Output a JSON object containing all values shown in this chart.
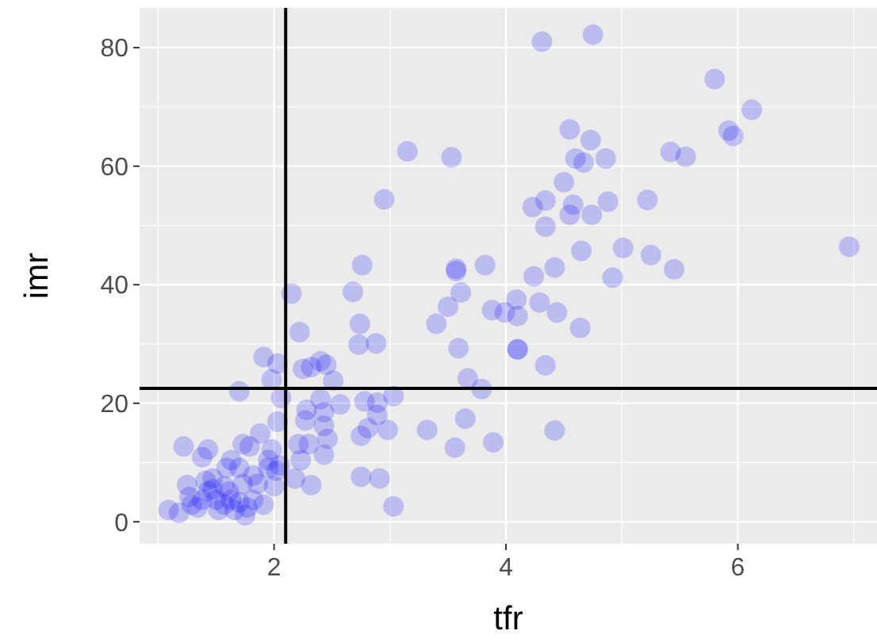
{
  "chart_data": {
    "type": "scatter",
    "xlabel": "tfr",
    "ylabel": "imr",
    "xlim": [
      0.84,
      7.2
    ],
    "ylim": [
      -3.7,
      86.7
    ],
    "xticks": [
      2,
      4,
      6
    ],
    "yticks": [
      0,
      20,
      40,
      60,
      80
    ],
    "grid": true,
    "marker": "circle",
    "ref_lines": [
      {
        "axis": "x",
        "value": 2.1,
        "color": "#000000"
      },
      {
        "axis": "y",
        "value": 22.5,
        "color": "#000000"
      }
    ],
    "series": [
      {
        "color": "#0000ff",
        "x": [
          4.31,
          4.75,
          5.8,
          6.12,
          5.92,
          5.96,
          4.55,
          4.73,
          4.6,
          4.67,
          4.86,
          5.42,
          5.55,
          3.53,
          3.15,
          4.5,
          4.23,
          4.34,
          4.58,
          4.55,
          4.74,
          4.88,
          5.22,
          4.34,
          4.65,
          5.01,
          5.25,
          5.45,
          4.92,
          6.96,
          4.42,
          4.24,
          3.82,
          3.57,
          3.57,
          3.61,
          3.5,
          3.4,
          3.88,
          3.99,
          4.09,
          4.1,
          4.29,
          4.44,
          4.64,
          3.59,
          4.1,
          4.1,
          4.34,
          3.67,
          3.79,
          3.65,
          3.32,
          3.56,
          3.89,
          4.42,
          2.95,
          2.76,
          2.68,
          2.15,
          2.74,
          2.22,
          2.73,
          2.88,
          1.91,
          2.03,
          2.25,
          2.32,
          2.4,
          2.45,
          1.98,
          2.51,
          1.7,
          2.06,
          2.4,
          2.57,
          2.28,
          2.43,
          2.78,
          2.89,
          3.03,
          2.89,
          2.98,
          2.81,
          2.75,
          2.03,
          1.88,
          1.73,
          2.27,
          2.43,
          2.46,
          2.21,
          2.3,
          2.43,
          2.23,
          1.98,
          2.05,
          1.79,
          1.63,
          1.43,
          1.22,
          1.38,
          1.7,
          1.95,
          1.82,
          1.59,
          1.47,
          1.86,
          2.02,
          2.18,
          2.32,
          2.75,
          2.91,
          3.03,
          1.25,
          1.41,
          1.57,
          1.73,
          1.09,
          1.18,
          1.29,
          1.38,
          1.43,
          1.5,
          1.57,
          1.63,
          1.7,
          1.77,
          1.82,
          1.75,
          1.66,
          1.52,
          1.34,
          1.91,
          1.47,
          1.61,
          1.27,
          2.0,
          1.95
        ],
        "values": [
          81.0,
          82.2,
          74.7,
          69.5,
          66.0,
          65.1,
          66.2,
          64.4,
          61.3,
          60.6,
          61.3,
          62.4,
          61.6,
          61.5,
          62.5,
          57.3,
          53.1,
          54.2,
          53.5,
          51.8,
          51.8,
          54.0,
          54.3,
          49.8,
          45.7,
          46.2,
          45.0,
          42.6,
          41.2,
          46.4,
          42.9,
          41.4,
          43.3,
          42.7,
          42.3,
          38.7,
          36.3,
          33.4,
          35.7,
          35.3,
          37.5,
          34.7,
          37.0,
          35.3,
          32.7,
          29.3,
          29.1,
          29.1,
          26.4,
          24.2,
          22.4,
          17.4,
          15.5,
          12.5,
          13.4,
          15.4,
          54.4,
          43.3,
          38.8,
          38.5,
          33.4,
          32.0,
          29.9,
          30.1,
          27.8,
          26.7,
          25.8,
          26.1,
          27.1,
          26.5,
          24.0,
          23.8,
          22.0,
          20.9,
          20.7,
          19.8,
          18.9,
          18.5,
          20.3,
          20.1,
          21.2,
          18.0,
          15.5,
          15.8,
          14.5,
          16.9,
          14.9,
          13.1,
          17.1,
          16.2,
          14.0,
          13.1,
          13.1,
          11.3,
          10.4,
          12.2,
          9.5,
          12.7,
          10.4,
          12.2,
          12.7,
          10.9,
          9.1,
          9.1,
          7.8,
          9.1,
          7.3,
          6.4,
          8.6,
          7.3,
          6.2,
          7.6,
          7.3,
          2.6,
          6.2,
          6.9,
          6.0,
          6.4,
          2.0,
          1.5,
          2.9,
          3.7,
          5.1,
          3.7,
          2.9,
          3.7,
          3.3,
          2.4,
          3.7,
          1.1,
          2.0,
          2.0,
          2.4,
          2.9,
          5.5,
          5.1,
          4.2,
          6.0,
          10.4
        ]
      }
    ]
  }
}
